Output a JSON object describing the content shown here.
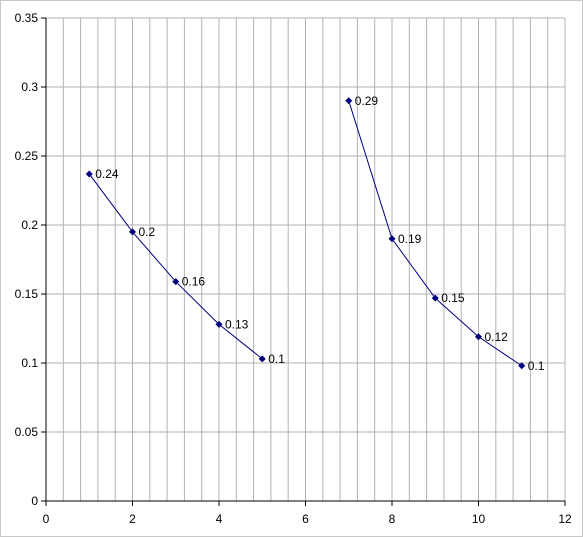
{
  "chart_data": {
    "type": "scatter",
    "title": "",
    "xlabel": "",
    "ylabel": "",
    "xlim": [
      0,
      12
    ],
    "ylim": [
      0,
      0.35
    ],
    "x_ticks": [
      0,
      2,
      4,
      6,
      8,
      10,
      12
    ],
    "x_tick_labels": [
      "0",
      "2",
      "4",
      "6",
      "8",
      "10",
      "12"
    ],
    "x_minor_step": 0.4,
    "y_ticks": [
      0,
      0.05,
      0.1,
      0.15,
      0.2,
      0.25,
      0.3,
      0.35
    ],
    "y_tick_labels": [
      "0",
      "0.05",
      "0.1",
      "0.15",
      "0.2",
      "0.25",
      "0.3",
      "0.35"
    ],
    "grid": true,
    "legend": "none",
    "colors": {
      "series": "#000080",
      "grid": "#b3b3b3",
      "axis": "#000000"
    },
    "series": [
      {
        "x": [
          1,
          2,
          3,
          4,
          5
        ],
        "y": [
          0.237,
          0.195,
          0.159,
          0.128,
          0.103
        ],
        "labels": [
          "0.24",
          "0.2",
          "0.16",
          "0.13",
          "0.1"
        ]
      },
      {
        "x": [
          7,
          8,
          9,
          10,
          11
        ],
        "y": [
          0.29,
          0.19,
          0.147,
          0.119,
          0.098
        ],
        "labels": [
          "0.29",
          "0.19",
          "0.15",
          "0.12",
          "0.1"
        ]
      }
    ]
  }
}
